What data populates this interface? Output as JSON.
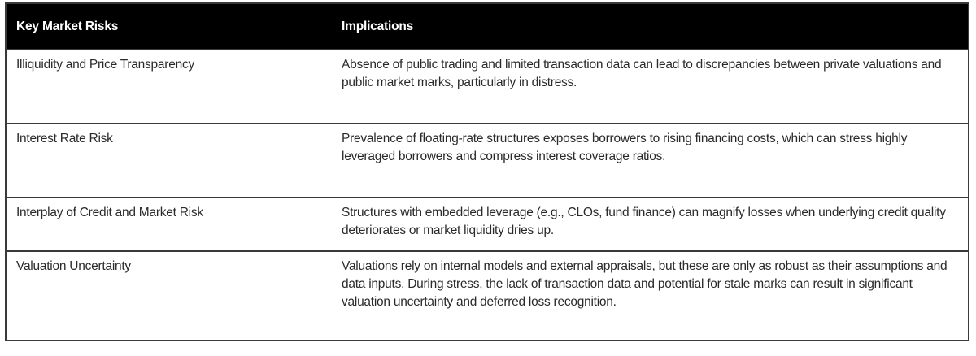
{
  "table": {
    "headers": {
      "risk": "Key Market Risks",
      "implications": "Implications"
    },
    "header_bg": "#000000",
    "header_fg": "#ffffff",
    "rows": [
      {
        "risk": "Illiquidity and Price Transparency",
        "implications": "Absence of public trading and limited transaction data can lead to discrepancies between private valuations and public market marks, particularly in distress."
      },
      {
        "risk": "Interest Rate Risk",
        "implications": "Prevalence of floating-rate structures exposes borrowers to rising financing costs, which can stress highly leveraged borrowers and compress interest coverage ratios."
      },
      {
        "risk": "Interplay of Credit and Market Risk",
        "implications": "Structures with embedded leverage (e.g., CLOs, fund finance) can magnify losses when underlying credit quality deteriorates or market liquidity dries up."
      },
      {
        "risk": "Valuation Uncertainty",
        "implications": "Valuations rely on internal models and external appraisals, but these are only as robust as their assumptions and data inputs. During stress, the lack of transaction data and potential for stale marks can result in significant valuation uncertainty and deferred loss recognition."
      }
    ]
  }
}
